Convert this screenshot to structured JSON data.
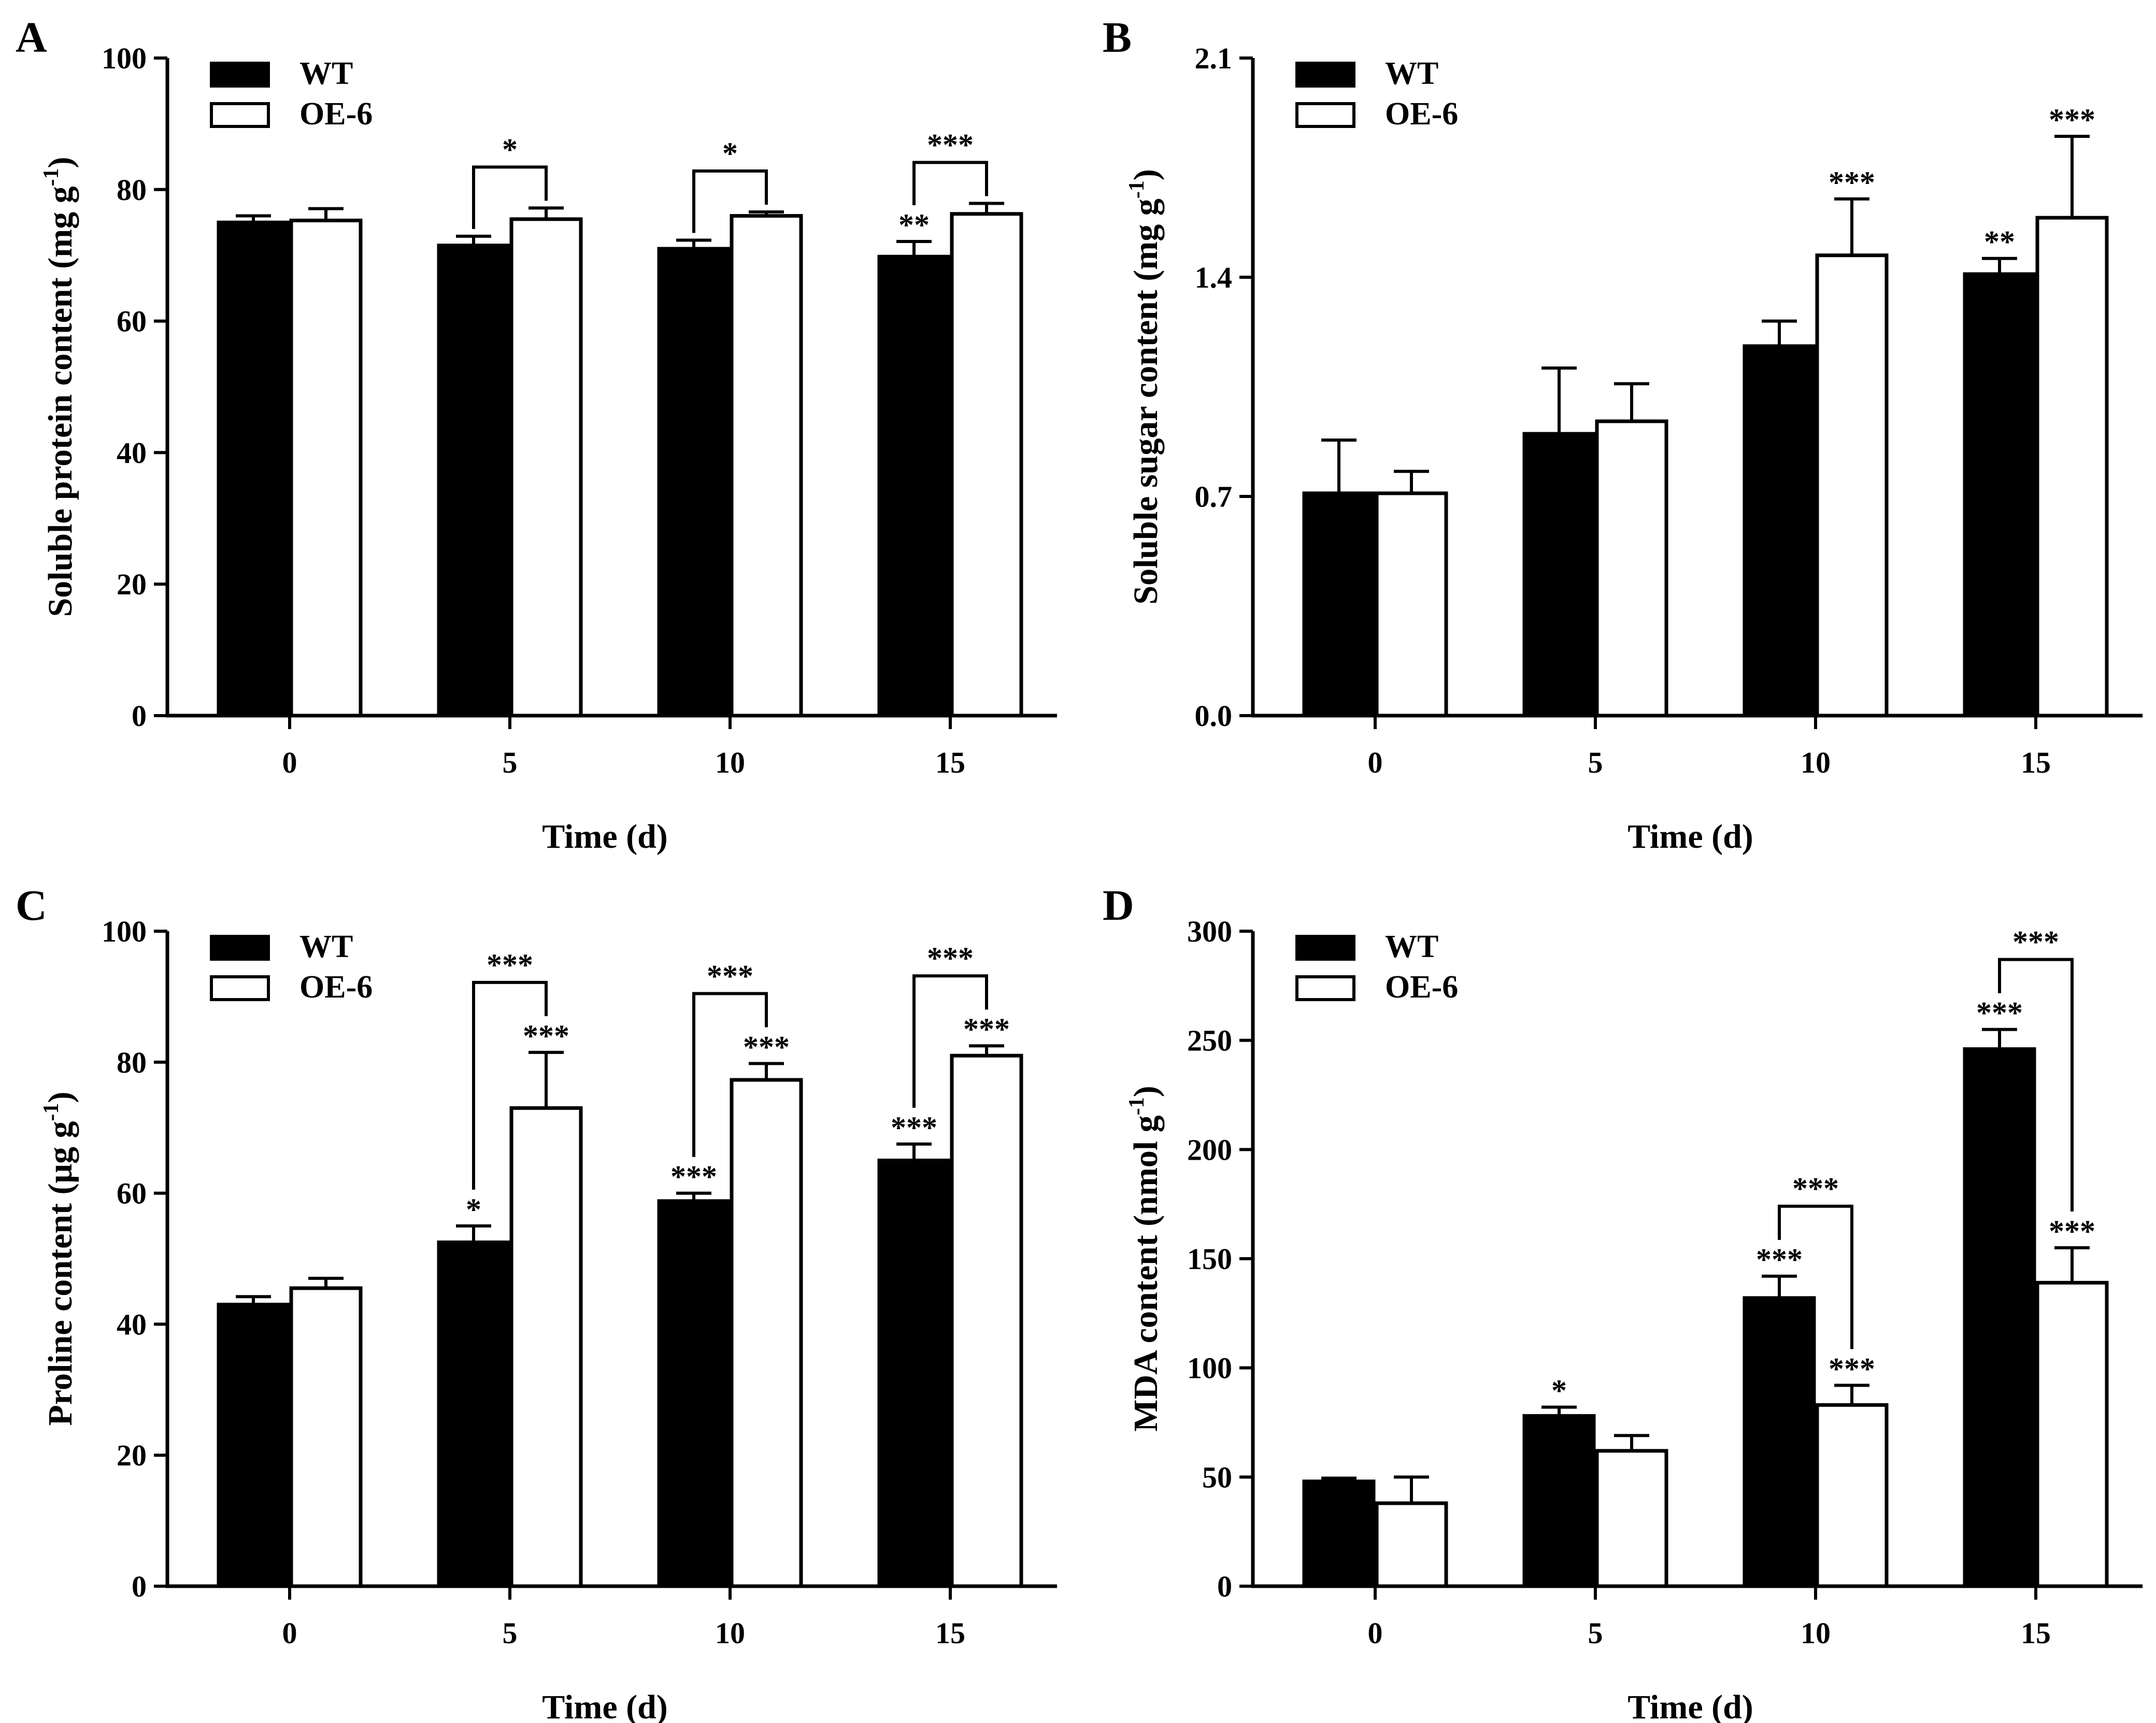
{
  "colors": {
    "wt": "#000000",
    "oe": "#ffffff",
    "ink": "#000000"
  },
  "legend": [
    {
      "key": "wt",
      "label": "WT"
    },
    {
      "key": "oe",
      "label": "OE-6"
    }
  ],
  "chart_data": [
    {
      "panel": "A",
      "type": "bar",
      "categories": [
        "0",
        "5",
        "10",
        "15"
      ],
      "xlabel": "Time (d)",
      "ylabel": "Soluble protein content (mg g",
      "ylabel_sup": "-1",
      "ylim": [
        0,
        100
      ],
      "yticks": [
        "0",
        "20",
        "40",
        "60",
        "80",
        "100"
      ],
      "legend_position": "top-left",
      "series": [
        {
          "name": "WT",
          "values": [
            75.0,
            71.5,
            71.0,
            69.8
          ],
          "errors": [
            1.0,
            1.4,
            1.3,
            2.3
          ],
          "labels": [
            "",
            "",
            "",
            "**"
          ]
        },
        {
          "name": "OE-6",
          "values": [
            75.3,
            75.5,
            76.0,
            76.3
          ],
          "errors": [
            1.8,
            1.7,
            0.6,
            1.6
          ],
          "labels": [
            "",
            "",
            "",
            ""
          ]
        }
      ],
      "brackets": [
        {
          "category": 1,
          "label": "*"
        },
        {
          "category": 2,
          "label": "*"
        },
        {
          "category": 3,
          "label": "***"
        }
      ]
    },
    {
      "panel": "B",
      "type": "bar",
      "categories": [
        "0",
        "5",
        "10",
        "15"
      ],
      "xlabel": "Time (d)",
      "ylabel": "Soluble sugar content (mg g",
      "ylabel_sup": "-1",
      "ylim": [
        0,
        2.1
      ],
      "yticks": [
        "0.0",
        "0.7",
        "1.4",
        "2.1"
      ],
      "legend_position": "top-left",
      "series": [
        {
          "name": "WT",
          "values": [
            0.71,
            0.9,
            1.18,
            1.41
          ],
          "errors": [
            0.17,
            0.21,
            0.08,
            0.05
          ],
          "labels": [
            "",
            "",
            "",
            "**"
          ]
        },
        {
          "name": "OE-6",
          "values": [
            0.71,
            0.94,
            1.47,
            1.59
          ],
          "errors": [
            0.07,
            0.12,
            0.18,
            0.26
          ],
          "labels": [
            "",
            "",
            "***",
            "***"
          ]
        }
      ],
      "brackets": []
    },
    {
      "panel": "C",
      "type": "bar",
      "categories": [
        "0",
        "5",
        "10",
        "15"
      ],
      "xlabel": "Time (d)",
      "ylabel": "Proline content (μg g",
      "ylabel_sup": "-1",
      "ylim": [
        0,
        100
      ],
      "yticks": [
        "0",
        "20",
        "40",
        "60",
        "80",
        "100"
      ],
      "legend_position": "top-left",
      "series": [
        {
          "name": "WT",
          "values": [
            43.0,
            52.5,
            58.8,
            65.0
          ],
          "errors": [
            1.2,
            2.5,
            1.2,
            2.5
          ],
          "labels": [
            "",
            "*",
            "***",
            "***"
          ]
        },
        {
          "name": "OE-6",
          "values": [
            45.5,
            73.0,
            77.3,
            81.0
          ],
          "errors": [
            1.5,
            8.5,
            2.5,
            1.5
          ],
          "labels": [
            "",
            "***",
            "***",
            "***"
          ]
        }
      ],
      "brackets": [
        {
          "category": 1,
          "label": "***"
        },
        {
          "category": 2,
          "label": "***"
        },
        {
          "category": 3,
          "label": "***"
        }
      ]
    },
    {
      "panel": "D",
      "type": "bar",
      "categories": [
        "0",
        "5",
        "10",
        "15"
      ],
      "xlabel": "Time (d)",
      "ylabel": "MDA content (nmol g",
      "ylabel_sup": "-1",
      "ylim": [
        0,
        300
      ],
      "yticks": [
        "0",
        "50",
        "100",
        "150",
        "200",
        "250",
        "300"
      ],
      "legend_position": "top-left",
      "series": [
        {
          "name": "WT",
          "values": [
            48,
            78,
            132,
            246
          ],
          "errors": [
            1.5,
            4,
            10,
            9
          ],
          "labels": [
            "",
            "*",
            "***",
            "***"
          ]
        },
        {
          "name": "OE-6",
          "values": [
            38,
            62,
            83,
            139
          ],
          "errors": [
            12,
            7,
            9,
            16
          ],
          "labels": [
            "",
            "",
            "***",
            "***"
          ]
        }
      ],
      "brackets": [
        {
          "category": 2,
          "label": "***"
        },
        {
          "category": 3,
          "label": "***"
        }
      ]
    }
  ]
}
